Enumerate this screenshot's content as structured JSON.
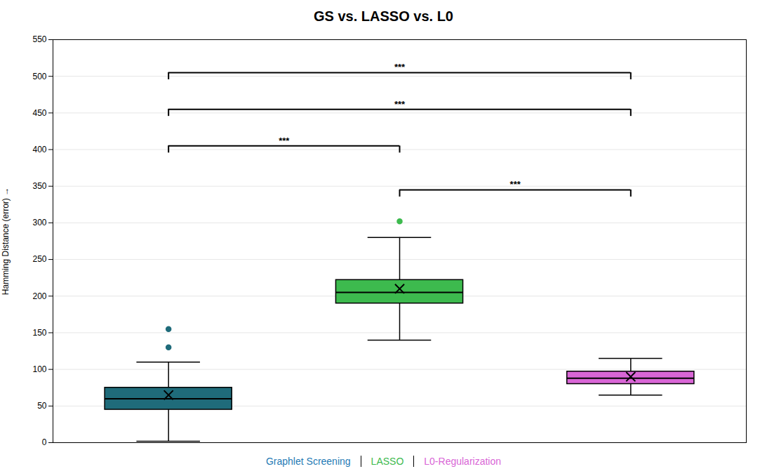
{
  "chart_data": {
    "type": "box",
    "title": "GS vs. LASSO vs. L0",
    "ylabel": "Hamming Distance (error)",
    "ylim": [
      0,
      550
    ],
    "yticks": [
      0,
      50,
      100,
      150,
      200,
      250,
      300,
      350,
      400,
      450,
      500,
      550
    ],
    "grid": true,
    "tick_labels": "y",
    "legend": "bottom",
    "series": [
      {
        "name": "Graphlet Screening",
        "color": "#1f6b7a",
        "legend_color": "#1f7ab5",
        "q1": 45,
        "median": 60,
        "q3": 75,
        "mean": 65,
        "whislo": 2,
        "whishi": 110,
        "fliers": [
          130,
          155
        ]
      },
      {
        "name": "LASSO",
        "color": "#3dba4e",
        "legend_color": "#3dba4e",
        "q1": 190,
        "median": 205,
        "q3": 222,
        "mean": 210,
        "whislo": 140,
        "whishi": 280,
        "fliers": [
          302
        ]
      },
      {
        "name": "L0-Regularization",
        "color": "#d966d6",
        "legend_color": "#d966d6",
        "q1": 80,
        "median": 88,
        "q3": 97,
        "mean": 90,
        "whislo": 65,
        "whishi": 115,
        "fliers": []
      }
    ],
    "annotations": [
      {
        "from": "Graphlet Screening",
        "to": "LASSO",
        "y": 405,
        "text": "***"
      },
      {
        "from": "Graphlet Screening",
        "to": "L0-Regularization",
        "y": 455,
        "text": "***"
      },
      {
        "from": "Graphlet Screening",
        "to": "L0-Regularization",
        "y": 505,
        "text": "***"
      },
      {
        "from": "LASSO",
        "to": "L0-Regularization",
        "y": 345,
        "text": "***"
      }
    ]
  }
}
